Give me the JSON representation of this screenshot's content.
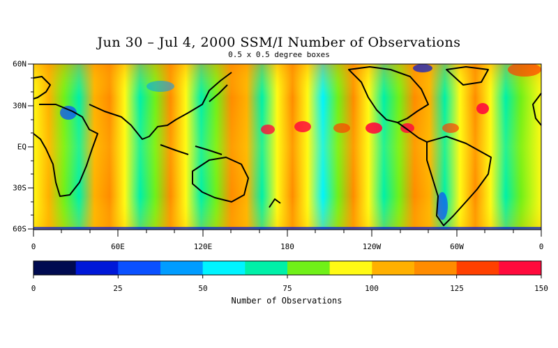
{
  "title": "Jun 30 – Jul 4, 2000 SSM/I Number of Observations",
  "subtitle": "0.5 x 0.5 degree boxes",
  "lat_labels": [
    "60N",
    "30N",
    "EQ",
    "30S",
    "60S"
  ],
  "lon_labels": [
    "0",
    "60E",
    "120E",
    "180",
    "120W",
    "60W",
    "0"
  ],
  "colorbar": {
    "title": "Number of Observations",
    "tick_labels": [
      "0",
      "25",
      "50",
      "75",
      "100",
      "125",
      "150"
    ],
    "range": [
      0,
      150
    ],
    "colors": [
      "#000a50",
      "#0018d8",
      "#0a50ff",
      "#009cff",
      "#00f4ff",
      "#00f0a8",
      "#70f018",
      "#fffa14",
      "#ffb000",
      "#ff8c00",
      "#ff4000",
      "#ff0a3c"
    ]
  },
  "map": {
    "extent_lon": [
      0,
      360
    ],
    "extent_lat": [
      -60,
      60
    ],
    "typical_counts": "orbital swath stripes alternating ~60-140 observations",
    "land_color": "#fffa14"
  }
}
